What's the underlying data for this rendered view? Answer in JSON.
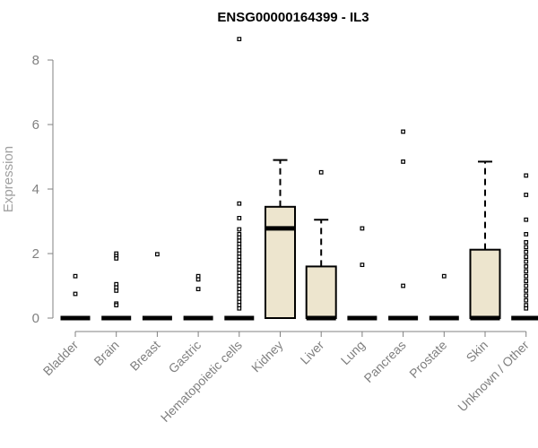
{
  "chart_data": {
    "type": "box",
    "title": "ENSG00000164399 - IL3",
    "xlabel": "",
    "ylabel": "Expression",
    "ylim": [
      0,
      8.6
    ],
    "yticks": [
      0,
      2,
      4,
      6,
      8
    ],
    "box_fill": "#ede5ce",
    "box_stroke": "#000000",
    "axis_color": "#808080",
    "categories": [
      "Bladder",
      "Brain",
      "Breast",
      "Gastric",
      "Hematopoietic cells",
      "Kidney",
      "Liver",
      "Lung",
      "Pancreas",
      "Prostate",
      "Skin",
      "Unknown / Other"
    ],
    "series": [
      {
        "category": "Bladder",
        "q1": 0,
        "median": 0,
        "q3": 0,
        "whisker_high": 0,
        "outliers": [
          1.3,
          0.75
        ]
      },
      {
        "category": "Brain",
        "q1": 0,
        "median": 0,
        "q3": 0,
        "whisker_high": 0,
        "outliers": [
          2.0,
          1.92,
          1.85,
          1.05,
          0.95,
          0.85,
          0.45,
          0.4
        ]
      },
      {
        "category": "Breast",
        "q1": 0,
        "median": 0,
        "q3": 0,
        "whisker_high": 0,
        "outliers": [
          1.98
        ]
      },
      {
        "category": "Gastric",
        "q1": 0,
        "median": 0,
        "q3": 0,
        "whisker_high": 0,
        "outliers": [
          1.3,
          1.2,
          0.9
        ]
      },
      {
        "category": "Hematopoietic cells",
        "q1": 0,
        "median": 0,
        "q3": 0,
        "whisker_high": 0,
        "outliers": [
          8.65,
          3.55,
          3.1,
          2.75,
          2.6,
          2.5,
          2.4,
          2.3,
          2.2,
          2.1,
          2.0,
          1.9,
          1.8,
          1.7,
          1.6,
          1.5,
          1.4,
          1.3,
          1.2,
          1.1,
          1.0,
          0.9,
          0.8,
          0.7,
          0.6,
          0.5,
          0.4,
          0.3
        ]
      },
      {
        "category": "Kidney",
        "q1": 0,
        "median": 2.78,
        "q3": 3.45,
        "whisker_high": 4.9,
        "outliers": []
      },
      {
        "category": "Liver",
        "q1": 0,
        "median": 0,
        "q3": 1.6,
        "whisker_high": 3.05,
        "outliers": [
          4.52
        ]
      },
      {
        "category": "Lung",
        "q1": 0,
        "median": 0,
        "q3": 0,
        "whisker_high": 0,
        "outliers": [
          2.78,
          1.65
        ]
      },
      {
        "category": "Pancreas",
        "q1": 0,
        "median": 0,
        "q3": 0,
        "whisker_high": 0,
        "outliers": [
          5.78,
          4.85,
          1.0
        ]
      },
      {
        "category": "Prostate",
        "q1": 0,
        "median": 0,
        "q3": 0,
        "whisker_high": 0,
        "outliers": [
          1.3
        ]
      },
      {
        "category": "Skin",
        "q1": 0,
        "median": 0,
        "q3": 2.12,
        "whisker_high": 4.85,
        "outliers": []
      },
      {
        "category": "Unknown / Other",
        "q1": 0,
        "median": 0,
        "q3": 0,
        "whisker_high": 0,
        "outliers": [
          4.42,
          3.82,
          3.05,
          2.6,
          2.35,
          2.2,
          2.05,
          1.9,
          1.75,
          1.6,
          1.45,
          1.3,
          1.15,
          1.0,
          0.85,
          0.7,
          0.55,
          0.4,
          0.3
        ]
      }
    ]
  }
}
